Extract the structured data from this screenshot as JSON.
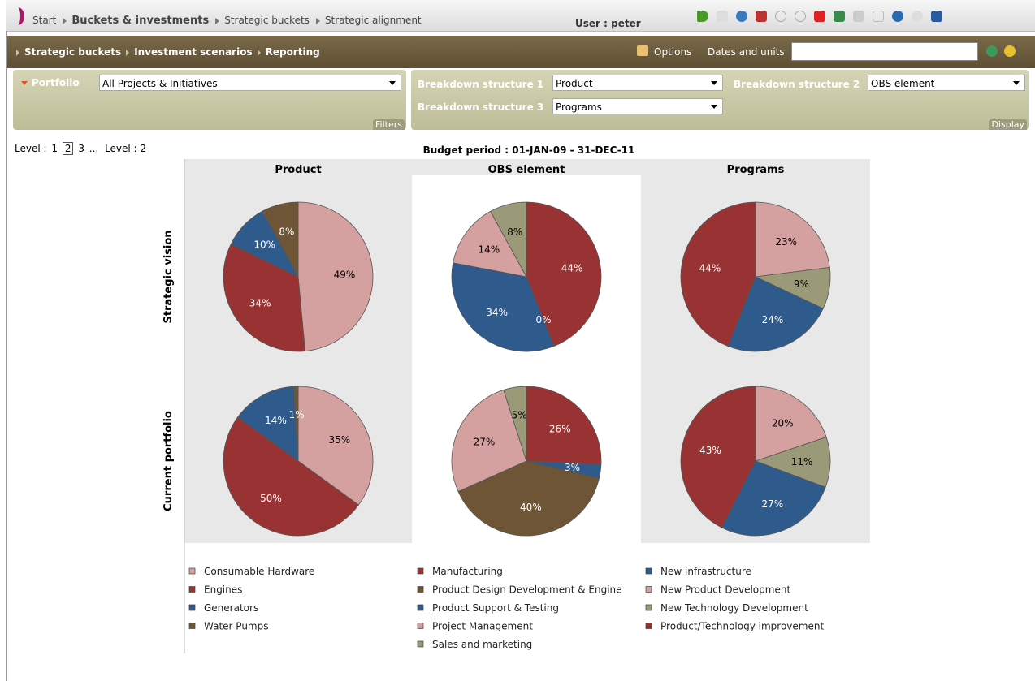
{
  "breadcrumb": [
    "Start",
    "Buckets & investments",
    "Strategic buckets",
    "Strategic alignment"
  ],
  "user": "User : peter",
  "nav": {
    "links": [
      "Strategic buckets",
      "Investment scenarios",
      "Reporting"
    ],
    "options": "Options",
    "dates_units": "Dates and units"
  },
  "filters": {
    "label": "Portfolio",
    "value": "All Projects & Initiatives",
    "panel": "Filters"
  },
  "display": {
    "items": [
      {
        "label": "Breakdown structure 1",
        "value": "Product"
      },
      {
        "label": "Breakdown structure 2",
        "value": "OBS element"
      },
      {
        "label": "Breakdown structure 3",
        "value": "Programs"
      }
    ],
    "panel": "Display"
  },
  "levels": {
    "prefix": "Level :",
    "options": [
      "1",
      "2",
      "3"
    ],
    "selected": "2",
    "more": "...",
    "current": "Level : 2"
  },
  "chart_data": {
    "type": "pie",
    "title": "Budget period : 01-JAN-09 - 31-DEC-11",
    "columns": [
      "Product",
      "OBS element",
      "Programs"
    ],
    "rows": [
      "Strategic vision",
      "Current portfolio"
    ],
    "pies": [
      [
        [
          {
            "name": "Consumable Hardware",
            "color": "#d4a0a0",
            "value": 49,
            "label": "49%"
          },
          {
            "name": "Engines",
            "color": "#993333",
            "value": 34,
            "label": "34%"
          },
          {
            "name": "Generators",
            "color": "#2e5b8c",
            "value": 10,
            "label": "10%"
          },
          {
            "name": "Water Pumps",
            "color": "#6e5535",
            "value": 8,
            "label": "8%"
          }
        ],
        [
          {
            "name": "Manufacturing",
            "color": "#993333",
            "value": 44,
            "label": "44%"
          },
          {
            "name": "Product Design Development & Engine",
            "color": "#6e5535",
            "value": 0,
            "label": "0%"
          },
          {
            "name": "Product Support & Testing",
            "color": "#2e5b8c",
            "value": 34,
            "label": "34%"
          },
          {
            "name": "Project Management",
            "color": "#d4a0a0",
            "value": 14,
            "label": "14%"
          },
          {
            "name": "Sales and marketing",
            "color": "#9a9a78",
            "value": 8,
            "label": "8%"
          }
        ],
        [
          {
            "name": "New Product Development",
            "color": "#d4a0a0",
            "value": 23,
            "label": "23%"
          },
          {
            "name": "New Technology Development",
            "color": "#9a9a78",
            "value": 9,
            "label": "9%"
          },
          {
            "name": "New infrastructure",
            "color": "#2e5b8c",
            "value": 24,
            "label": "24%"
          },
          {
            "name": "Product/Technology improvement",
            "color": "#993333",
            "value": 44,
            "label": "44%"
          }
        ]
      ],
      [
        [
          {
            "name": "Consumable Hardware",
            "color": "#d4a0a0",
            "value": 35,
            "label": "35%"
          },
          {
            "name": "Engines",
            "color": "#993333",
            "value": 50,
            "label": "50%"
          },
          {
            "name": "Generators",
            "color": "#2e5b8c",
            "value": 14,
            "label": "14%"
          },
          {
            "name": "Water Pumps",
            "color": "#6e5535",
            "value": 1,
            "label": "1%"
          }
        ],
        [
          {
            "name": "Manufacturing",
            "color": "#993333",
            "value": 26,
            "label": "26%"
          },
          {
            "name": "Product Support & Testing",
            "color": "#2e5b8c",
            "value": 3,
            "label": "3%"
          },
          {
            "name": "Product Design Development & Engine",
            "color": "#6e5535",
            "value": 40,
            "label": "40%"
          },
          {
            "name": "Project Management",
            "color": "#d4a0a0",
            "value": 27,
            "label": "27%"
          },
          {
            "name": "Sales and marketing",
            "color": "#9a9a78",
            "value": 5,
            "label": "5%"
          }
        ],
        [
          {
            "name": "New Product Development",
            "color": "#d4a0a0",
            "value": 20,
            "label": "20%"
          },
          {
            "name": "New Technology Development",
            "color": "#9a9a78",
            "value": 11,
            "label": "11%"
          },
          {
            "name": "New infrastructure",
            "color": "#2e5b8c",
            "value": 27,
            "label": "27%"
          },
          {
            "name": "Product/Technology improvement",
            "color": "#993333",
            "value": 43,
            "label": "43%"
          }
        ]
      ]
    ],
    "legend": [
      [
        {
          "name": "Consumable Hardware",
          "color": "#d4a0a0"
        },
        {
          "name": "Engines",
          "color": "#993333"
        },
        {
          "name": "Generators",
          "color": "#2e5b8c"
        },
        {
          "name": "Water Pumps",
          "color": "#6e5535"
        }
      ],
      [
        {
          "name": "Manufacturing",
          "color": "#993333"
        },
        {
          "name": "Product Design Development & Engine",
          "color": "#6e5535"
        },
        {
          "name": "Product Support & Testing",
          "color": "#2e5b8c"
        },
        {
          "name": "Project Management",
          "color": "#d4a0a0"
        },
        {
          "name": "Sales and marketing",
          "color": "#9a9a78"
        }
      ],
      [
        {
          "name": "New infrastructure",
          "color": "#2e5b8c"
        },
        {
          "name": "New Product Development",
          "color": "#d4a0a0"
        },
        {
          "name": "New Technology Development",
          "color": "#9a9a78"
        },
        {
          "name": "Product/Technology improvement",
          "color": "#993333"
        }
      ]
    ]
  }
}
